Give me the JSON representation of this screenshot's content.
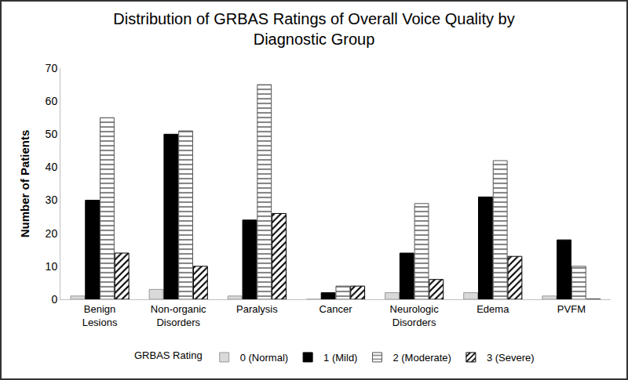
{
  "chart_data": {
    "type": "bar",
    "title": "Distribution of GRBAS Ratings of Overall Voice Quality by Diagnostic Group",
    "ylabel": "Number of Patients",
    "legend_title": "GRBAS Rating",
    "categories": [
      "Benign Lesions",
      "Non-organic Disorders",
      "Paralysis",
      "Cancer",
      "Neurologic Disorders",
      "Edema",
      "PVFM"
    ],
    "series": [
      {
        "name": "0 (Normal)",
        "color": "#d9d9d9",
        "values": [
          1,
          3,
          1,
          0,
          2,
          2,
          1
        ]
      },
      {
        "name": "1 (Mild)",
        "color": "#000000",
        "values": [
          30,
          50,
          24,
          2,
          14,
          31,
          18
        ]
      },
      {
        "name": "2 (Moderate)",
        "color": "#ffffff",
        "values": [
          55,
          51,
          65,
          4,
          29,
          42,
          10
        ]
      },
      {
        "name": "3 (Severe)",
        "color": "#ffffff",
        "values": [
          14,
          10,
          26,
          4,
          6,
          13,
          0
        ]
      }
    ],
    "ylim": [
      0,
      70
    ],
    "yticks": [
      0,
      10,
      20,
      30,
      40,
      50,
      60,
      70
    ],
    "grid": false,
    "legend": "bottom"
  }
}
